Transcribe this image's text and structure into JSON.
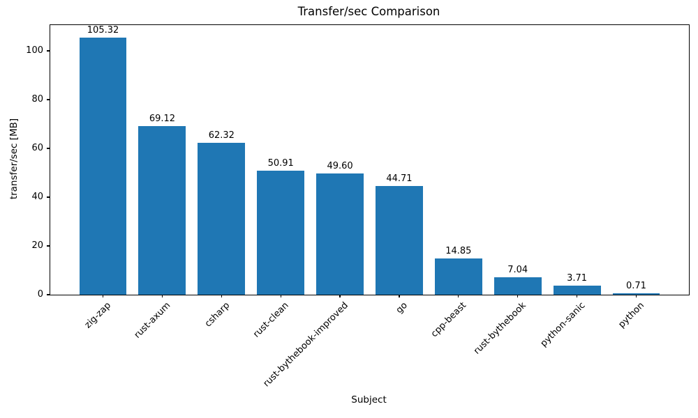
{
  "chart_data": {
    "type": "bar",
    "title": "Transfer/sec Comparison",
    "xlabel": "Subject",
    "ylabel": "transfer/sec [MB]",
    "categories": [
      "zig-zap",
      "rust-axum",
      "csharp",
      "rust-clean",
      "rust-bythebook-improved",
      "go",
      "cpp-beast",
      "rust-bythebook",
      "python-sanic",
      "python"
    ],
    "values": [
      105.32,
      69.12,
      62.32,
      50.91,
      49.6,
      44.71,
      14.85,
      7.04,
      3.71,
      0.71
    ],
    "value_labels": [
      "105.32",
      "69.12",
      "62.32",
      "50.91",
      "49.60",
      "44.71",
      "14.85",
      "7.04",
      "3.71",
      "0.71"
    ],
    "yticks": [
      0,
      20,
      40,
      60,
      80,
      100
    ],
    "ylim": [
      0,
      110.6
    ],
    "bar_color": "#1f77b4",
    "text_color": "#000000",
    "grid": false,
    "legend": null,
    "x_tick_rotation_deg": 45
  }
}
